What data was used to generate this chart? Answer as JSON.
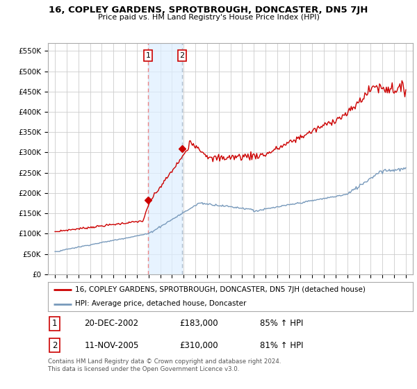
{
  "title": "16, COPLEY GARDENS, SPROTBROUGH, DONCASTER, DN5 7JH",
  "subtitle": "Price paid vs. HM Land Registry's House Price Index (HPI)",
  "red_line_color": "#cc0000",
  "blue_line_color": "#7799bb",
  "transaction1_date": 2002.97,
  "transaction1_price": 183000,
  "transaction1_label": "1",
  "transaction2_date": 2005.87,
  "transaction2_price": 310000,
  "transaction2_label": "2",
  "legend_line1": "16, COPLEY GARDENS, SPROTBROUGH, DONCASTER, DN5 7JH (detached house)",
  "legend_line2": "HPI: Average price, detached house, Doncaster",
  "table_row1": [
    "1",
    "20-DEC-2002",
    "£183,000",
    "85% ↑ HPI"
  ],
  "table_row2": [
    "2",
    "11-NOV-2005",
    "£310,000",
    "81% ↑ HPI"
  ],
  "footer": "Contains HM Land Registry data © Crown copyright and database right 2024.\nThis data is licensed under the Open Government Licence v3.0.",
  "bg_color": "#ffffff",
  "grid_color": "#cccccc",
  "shade_color": "#ddeeff"
}
